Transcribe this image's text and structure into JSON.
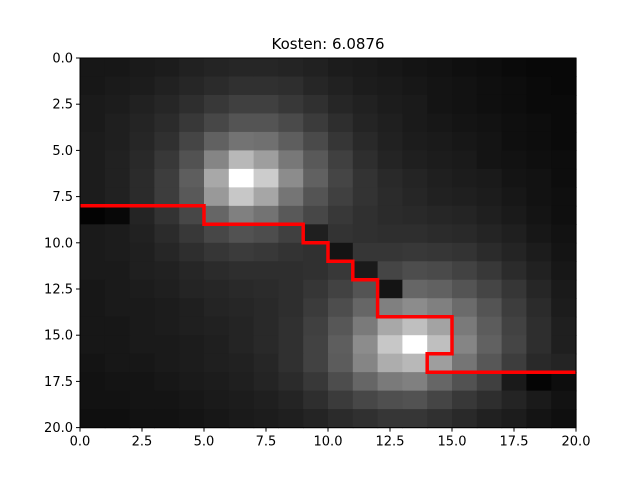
{
  "chart_data": {
    "type": "heatmap",
    "title": "Kosten: 6.0876",
    "colormap": "gray",
    "xlim": [
      0,
      20
    ],
    "ylim": [
      20,
      0
    ],
    "xticks": [
      "0.0",
      "2.5",
      "5.0",
      "7.5",
      "10.0",
      "12.5",
      "15.0",
      "17.5",
      "20.0"
    ],
    "yticks": [
      "0.0",
      "2.5",
      "5.0",
      "7.5",
      "10.0",
      "12.5",
      "15.0",
      "17.5",
      "20.0"
    ],
    "grid": false,
    "grid_values": [
      [
        0.09,
        0.09,
        0.1,
        0.11,
        0.13,
        0.14,
        0.15,
        0.15,
        0.14,
        0.13,
        0.11,
        0.1,
        0.09,
        0.08,
        0.07,
        0.06,
        0.05,
        0.04,
        0.03,
        0.03
      ],
      [
        0.09,
        0.1,
        0.11,
        0.13,
        0.15,
        0.17,
        0.19,
        0.19,
        0.18,
        0.15,
        0.13,
        0.11,
        0.1,
        0.09,
        0.08,
        0.07,
        0.06,
        0.05,
        0.04,
        0.03
      ],
      [
        0.1,
        0.11,
        0.13,
        0.15,
        0.18,
        0.22,
        0.25,
        0.25,
        0.22,
        0.19,
        0.15,
        0.13,
        0.11,
        0.1,
        0.08,
        0.07,
        0.06,
        0.05,
        0.04,
        0.04
      ],
      [
        0.1,
        0.12,
        0.14,
        0.17,
        0.22,
        0.28,
        0.33,
        0.33,
        0.29,
        0.23,
        0.18,
        0.14,
        0.12,
        0.1,
        0.09,
        0.08,
        0.07,
        0.06,
        0.05,
        0.04
      ],
      [
        0.11,
        0.12,
        0.15,
        0.19,
        0.27,
        0.38,
        0.45,
        0.44,
        0.37,
        0.29,
        0.21,
        0.16,
        0.13,
        0.11,
        0.1,
        0.09,
        0.08,
        0.06,
        0.05,
        0.04
      ],
      [
        0.11,
        0.13,
        0.16,
        0.22,
        0.32,
        0.52,
        0.72,
        0.62,
        0.47,
        0.35,
        0.25,
        0.18,
        0.14,
        0.12,
        0.11,
        0.1,
        0.08,
        0.07,
        0.06,
        0.05
      ],
      [
        0.11,
        0.13,
        0.17,
        0.24,
        0.37,
        0.66,
        1.0,
        0.8,
        0.55,
        0.38,
        0.27,
        0.2,
        0.16,
        0.14,
        0.12,
        0.11,
        0.1,
        0.08,
        0.07,
        0.05
      ],
      [
        0.11,
        0.13,
        0.17,
        0.24,
        0.35,
        0.6,
        0.78,
        0.65,
        0.46,
        0.33,
        0.25,
        0.2,
        0.17,
        0.15,
        0.13,
        0.12,
        0.11,
        0.09,
        0.07,
        0.06
      ],
      [
        0.01,
        0.03,
        0.14,
        0.2,
        0.28,
        0.4,
        0.5,
        0.45,
        0.35,
        0.28,
        0.22,
        0.19,
        0.17,
        0.16,
        0.15,
        0.14,
        0.12,
        0.1,
        0.08,
        0.06
      ],
      [
        0.1,
        0.11,
        0.13,
        0.17,
        0.22,
        0.28,
        0.32,
        0.3,
        0.25,
        0.12,
        0.2,
        0.19,
        0.18,
        0.18,
        0.17,
        0.16,
        0.14,
        0.12,
        0.09,
        0.07
      ],
      [
        0.1,
        0.11,
        0.12,
        0.15,
        0.18,
        0.21,
        0.23,
        0.22,
        0.2,
        0.19,
        0.08,
        0.21,
        0.21,
        0.22,
        0.21,
        0.2,
        0.17,
        0.14,
        0.11,
        0.08
      ],
      [
        0.1,
        0.1,
        0.12,
        0.13,
        0.15,
        0.17,
        0.18,
        0.18,
        0.18,
        0.19,
        0.22,
        0.1,
        0.27,
        0.3,
        0.29,
        0.26,
        0.22,
        0.17,
        0.13,
        0.09
      ],
      [
        0.09,
        0.1,
        0.11,
        0.12,
        0.14,
        0.15,
        0.16,
        0.17,
        0.18,
        0.21,
        0.26,
        0.33,
        0.08,
        0.4,
        0.38,
        0.33,
        0.27,
        0.21,
        0.15,
        0.1
      ],
      [
        0.09,
        0.1,
        0.1,
        0.11,
        0.12,
        0.14,
        0.15,
        0.16,
        0.18,
        0.23,
        0.3,
        0.4,
        0.5,
        0.55,
        0.5,
        0.42,
        0.33,
        0.24,
        0.17,
        0.11
      ],
      [
        0.09,
        0.09,
        0.1,
        0.11,
        0.12,
        0.13,
        0.14,
        0.16,
        0.19,
        0.25,
        0.34,
        0.48,
        0.66,
        0.75,
        0.64,
        0.48,
        0.36,
        0.26,
        0.18,
        0.12
      ],
      [
        0.09,
        0.09,
        0.1,
        0.1,
        0.11,
        0.12,
        0.14,
        0.16,
        0.19,
        0.26,
        0.37,
        0.55,
        0.78,
        1.0,
        0.75,
        0.52,
        0.38,
        0.27,
        0.18,
        0.12
      ],
      [
        0.08,
        0.09,
        0.09,
        0.1,
        0.11,
        0.12,
        0.13,
        0.15,
        0.19,
        0.26,
        0.36,
        0.52,
        0.68,
        0.72,
        0.62,
        0.46,
        0.34,
        0.24,
        0.16,
        0.14
      ],
      [
        0.07,
        0.08,
        0.08,
        0.09,
        0.1,
        0.11,
        0.12,
        0.14,
        0.17,
        0.22,
        0.3,
        0.4,
        0.48,
        0.5,
        0.4,
        0.32,
        0.25,
        0.1,
        0.02,
        0.05
      ],
      [
        0.07,
        0.07,
        0.08,
        0.08,
        0.09,
        0.1,
        0.11,
        0.12,
        0.14,
        0.18,
        0.23,
        0.28,
        0.31,
        0.32,
        0.27,
        0.22,
        0.18,
        0.14,
        0.1,
        0.07
      ],
      [
        0.06,
        0.06,
        0.07,
        0.07,
        0.08,
        0.09,
        0.1,
        0.11,
        0.12,
        0.14,
        0.17,
        0.19,
        0.21,
        0.21,
        0.19,
        0.16,
        0.13,
        0.11,
        0.08,
        0.06
      ]
    ],
    "path": {
      "color": "#ff0000",
      "points": [
        [
          0,
          8
        ],
        [
          5,
          8
        ],
        [
          5,
          9
        ],
        [
          9,
          9
        ],
        [
          9,
          10
        ],
        [
          10,
          10
        ],
        [
          10,
          11
        ],
        [
          11,
          11
        ],
        [
          11,
          12
        ],
        [
          12,
          12
        ],
        [
          12,
          14
        ],
        [
          15,
          14
        ],
        [
          15,
          16
        ],
        [
          14,
          16
        ],
        [
          14,
          17
        ],
        [
          20,
          17
        ]
      ]
    }
  }
}
